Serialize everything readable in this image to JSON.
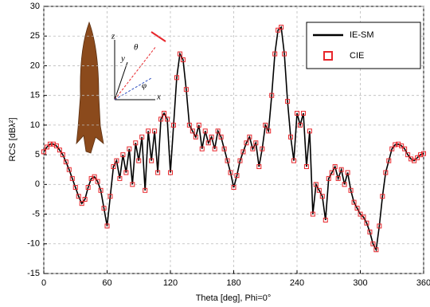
{
  "chart_data": {
    "type": "line",
    "xlabel": "Theta [deg], Phi=0°",
    "ylabel": "RCS [dBλ²]",
    "xlim": [
      0,
      360
    ],
    "xticks": [
      0,
      60,
      120,
      180,
      240,
      300,
      360
    ],
    "ylim": [
      -15,
      30
    ],
    "yticks": [
      -15,
      -10,
      -5,
      0,
      5,
      10,
      15,
      20,
      25,
      30
    ],
    "grid": true,
    "legend": "upper right",
    "annotations": [
      "z",
      "y",
      "x",
      "θ",
      "φ"
    ],
    "x": [
      0,
      3,
      6,
      9,
      12,
      15,
      18,
      21,
      24,
      27,
      30,
      33,
      36,
      39,
      42,
      45,
      48,
      51,
      54,
      57,
      60,
      63,
      66,
      69,
      72,
      75,
      78,
      81,
      84,
      87,
      90,
      93,
      96,
      99,
      102,
      105,
      108,
      111,
      114,
      117,
      120,
      123,
      126,
      129,
      132,
      135,
      138,
      141,
      144,
      147,
      150,
      153,
      156,
      159,
      162,
      165,
      168,
      171,
      174,
      177,
      180,
      183,
      186,
      189,
      192,
      195,
      198,
      201,
      204,
      207,
      210,
      213,
      216,
      219,
      222,
      225,
      228,
      231,
      234,
      237,
      240,
      243,
      246,
      249,
      252,
      255,
      258,
      261,
      264,
      267,
      270,
      273,
      276,
      279,
      282,
      285,
      288,
      291,
      294,
      297,
      300,
      303,
      306,
      309,
      312,
      315,
      318,
      321,
      324,
      327,
      330,
      333,
      336,
      339,
      342,
      345,
      348,
      351,
      354,
      357,
      360
    ],
    "series": [
      {
        "name": "IE-SM",
        "color": "#000000",
        "marker": "line",
        "values": [
          5.5,
          6.3,
          6.8,
          6.8,
          6.5,
          5.8,
          5,
          3.8,
          2.5,
          1,
          -0.5,
          -2,
          -3.2,
          -2.5,
          -0.5,
          1,
          1.3,
          0.5,
          -1,
          -4,
          -7,
          -2,
          3,
          4,
          1,
          5,
          2,
          6,
          0,
          7,
          4,
          8,
          -1,
          9,
          4,
          9,
          2,
          11,
          12,
          11,
          2,
          10,
          18,
          22,
          21,
          16,
          10,
          9,
          8,
          10,
          6,
          9,
          7,
          8,
          6,
          9,
          8,
          6,
          4,
          2,
          -0.5,
          1.5,
          4,
          5.5,
          7,
          8,
          6,
          7,
          3,
          6,
          10,
          9,
          15,
          22,
          26,
          26.5,
          22,
          14,
          8,
          4,
          12,
          10,
          12,
          3,
          9,
          -5,
          0,
          -1,
          -2,
          -6,
          1,
          2,
          3,
          1,
          2.5,
          0,
          2,
          -1,
          -3,
          -4,
          -5,
          -5.5,
          -6.5,
          -8,
          -10,
          -11,
          -7,
          -2,
          2,
          4,
          6,
          6.7,
          6.8,
          6.5,
          6,
          5,
          4.3,
          4,
          4.5,
          5,
          5.2
        ]
      },
      {
        "name": "CIE",
        "color": "#e8262b",
        "marker": "square",
        "values": [
          5.5,
          6.3,
          6.8,
          6.8,
          6.5,
          5.8,
          5,
          3.8,
          2.5,
          1,
          -0.5,
          -2,
          -3.2,
          -2.5,
          -0.5,
          1,
          1.3,
          0.5,
          -1,
          -4,
          -7,
          -2,
          3,
          4,
          1,
          5,
          2,
          6,
          0,
          7,
          4,
          8,
          -1,
          9,
          4,
          9,
          2,
          11,
          12,
          11,
          2,
          10,
          18,
          22,
          21,
          16,
          10,
          9,
          8,
          10,
          6,
          9,
          7,
          8,
          6,
          9,
          8,
          6,
          4,
          2,
          -0.5,
          1.5,
          4,
          5.5,
          7,
          8,
          6,
          7,
          3,
          6,
          10,
          9,
          15,
          22,
          26,
          26.5,
          22,
          14,
          8,
          4,
          12,
          10,
          12,
          3,
          9,
          -5,
          0,
          -1,
          -2,
          -6,
          1,
          2,
          3,
          1,
          2.5,
          0,
          2,
          -1,
          -3,
          -4,
          -5,
          -5.5,
          -6.5,
          -8,
          -10,
          -11,
          -7,
          -2,
          2,
          4,
          6,
          6.7,
          6.8,
          6.5,
          6,
          5,
          4.3,
          4,
          4.5,
          5,
          5.2
        ]
      }
    ]
  }
}
